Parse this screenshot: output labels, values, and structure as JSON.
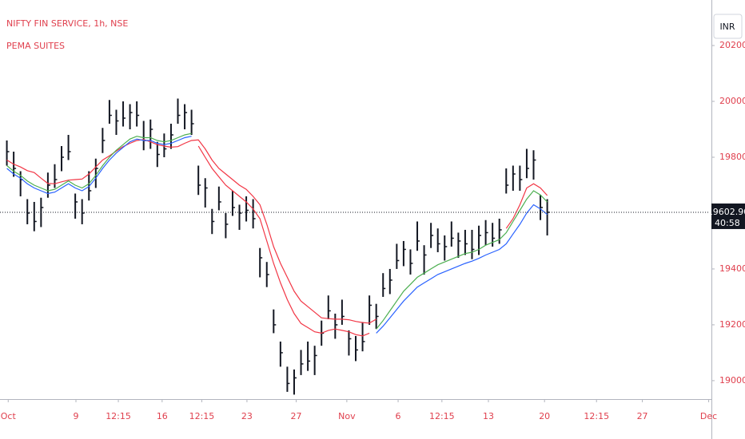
{
  "chart_data": {
    "type": "ohlc",
    "title": "NIFTY FIN SERVICE, 1h, NSE",
    "subtitle": "PEMA SUITES",
    "currency": "INR",
    "color": "#131722",
    "high": [
      19860,
      19820,
      19750,
      19650,
      19640,
      19655,
      19745,
      19775,
      19840,
      19880,
      19670,
      19650,
      19750,
      19795,
      19905,
      20005,
      19970,
      20000,
      19990,
      20000,
      19930,
      19935,
      19855,
      19885,
      19920,
      20010,
      19990,
      19970,
      19770,
      19725,
      19615,
      19695,
      19600,
      19680,
      19630,
      19660,
      19650,
      19475,
      19425,
      19255,
      19140,
      19050,
      19040,
      19110,
      19140,
      19125,
      19215,
      19305,
      19240,
      19290,
      19180,
      19160,
      19210,
      19305,
      19275,
      19385,
      19400,
      19490,
      19500,
      19470,
      19570,
      19485,
      19565,
      19545,
      19520,
      19570,
      19530,
      19540,
      19540,
      19555,
      19575,
      19565,
      19580,
      19760,
      19770,
      19770,
      19830,
      19825,
      19665,
      19650
    ],
    "low": [
      19770,
      19730,
      19660,
      19560,
      19535,
      19550,
      19655,
      19690,
      19750,
      19790,
      19580,
      19560,
      19645,
      19690,
      19815,
      19920,
      19880,
      19910,
      19900,
      19910,
      19825,
      19830,
      19765,
      19800,
      19830,
      19920,
      19900,
      19880,
      19665,
      19620,
      19525,
      19610,
      19510,
      19590,
      19540,
      19570,
      19545,
      19370,
      19335,
      19170,
      19050,
      18960,
      18950,
      19020,
      19035,
      19020,
      19125,
      19220,
      19150,
      19200,
      19090,
      19070,
      19105,
      19200,
      19185,
      19300,
      19310,
      19400,
      19410,
      19380,
      19465,
      19380,
      19475,
      19460,
      19430,
      19480,
      19440,
      19450,
      19435,
      19450,
      19485,
      19480,
      19490,
      19670,
      19680,
      19680,
      19725,
      19720,
      19575,
      19520
    ],
    "close": [
      19820,
      19760,
      19720,
      19600,
      19570,
      19620,
      19700,
      19720,
      19800,
      19820,
      19640,
      19600,
      19680,
      19760,
      19860,
      19950,
      19930,
      19940,
      19960,
      19950,
      19860,
      19900,
      19810,
      19830,
      19880,
      19950,
      19960,
      19920,
      19700,
      19690,
      19570,
      19640,
      19560,
      19620,
      19600,
      19610,
      19580,
      19440,
      19380,
      19200,
      19100,
      18990,
      19010,
      19060,
      19070,
      19090,
      19170,
      19250,
      19200,
      19230,
      19150,
      19110,
      19140,
      19270,
      19230,
      19330,
      19360,
      19430,
      19470,
      19420,
      19500,
      19450,
      19520,
      19490,
      19480,
      19510,
      19500,
      19490,
      19470,
      19520,
      19530,
      19510,
      19540,
      19700,
      19740,
      19720,
      19760,
      19790,
      19620,
      19602.9
    ],
    "series": [
      {
        "color": "#f23645",
        "values": [
          19790,
          19775,
          19765,
          19752,
          19745,
          19725,
          19706,
          19705,
          19712,
          19718,
          19720,
          19722,
          19740,
          19765,
          19790,
          19805,
          19822,
          19838,
          19850,
          19860,
          19863,
          19855,
          19845,
          19840,
          19836,
          19838,
          19850,
          19860,
          19862,
          19830,
          19790,
          19760,
          19740,
          19720,
          19700,
          19685,
          19660,
          19630,
          19560,
          19480,
          19420,
          19370,
          19320,
          19285,
          19265,
          19245,
          19225,
          19222,
          19220,
          19220,
          19218,
          19212,
          19208,
          19206,
          19220,
          null,
          null,
          null,
          null,
          null,
          null,
          null,
          null,
          null,
          null,
          null,
          null,
          null,
          null,
          null,
          null,
          null,
          null,
          19545,
          19580,
          19630,
          19690,
          19705,
          19690,
          19663
        ]
      },
      {
        "color": "#f23645",
        "values": [
          null,
          null,
          null,
          null,
          null,
          null,
          null,
          null,
          null,
          null,
          null,
          null,
          null,
          null,
          null,
          null,
          null,
          null,
          null,
          null,
          null,
          null,
          null,
          null,
          null,
          null,
          null,
          null,
          19840,
          19800,
          19760,
          19730,
          19700,
          19680,
          19660,
          19640,
          19615,
          19580,
          19500,
          19420,
          19350,
          19290,
          19240,
          19205,
          19190,
          19175,
          19170,
          19180,
          19185,
          19180,
          19175,
          19165,
          19160,
          19170,
          null,
          null,
          null,
          null,
          null,
          null,
          null,
          null,
          null,
          null,
          null,
          null,
          null,
          null,
          null,
          null,
          null,
          null,
          null,
          null,
          null,
          null,
          null,
          null,
          null,
          null
        ]
      },
      {
        "color": "#4caf50",
        "values": [
          19770,
          19750,
          19735,
          19715,
          19700,
          19690,
          19680,
          19685,
          19700,
          19715,
          19700,
          19690,
          19705,
          19735,
          19770,
          19800,
          19825,
          19845,
          19865,
          19875,
          19870,
          19870,
          19860,
          19855,
          19860,
          19870,
          19880,
          19885,
          null,
          null,
          null,
          null,
          null,
          null,
          null,
          null,
          null,
          null,
          null,
          null,
          null,
          null,
          null,
          null,
          null,
          null,
          null,
          null,
          null,
          null,
          null,
          null,
          null,
          null,
          19185,
          19215,
          19250,
          19285,
          19320,
          19345,
          19370,
          19385,
          19400,
          19415,
          19425,
          19435,
          19445,
          19455,
          19460,
          19470,
          19485,
          19495,
          19505,
          19530,
          19570,
          19610,
          19650,
          19680,
          19665,
          19640
        ]
      },
      {
        "color": "#2962ff",
        "values": [
          19760,
          19740,
          19725,
          19705,
          19690,
          19680,
          19670,
          19675,
          19690,
          19705,
          19690,
          19680,
          19695,
          19725,
          19760,
          19790,
          19815,
          19835,
          19855,
          19865,
          19860,
          19860,
          19850,
          19845,
          19850,
          19860,
          19870,
          19875,
          null,
          null,
          null,
          null,
          null,
          null,
          null,
          null,
          null,
          null,
          null,
          null,
          null,
          null,
          null,
          null,
          null,
          null,
          null,
          null,
          null,
          null,
          null,
          null,
          null,
          null,
          19170,
          19195,
          19225,
          19255,
          19285,
          19310,
          19335,
          19350,
          19365,
          19380,
          19390,
          19400,
          19410,
          19420,
          19428,
          19438,
          19450,
          19460,
          19470,
          19490,
          19525,
          19560,
          19600,
          19630,
          19615,
          19595
        ]
      }
    ],
    "last_price": {
      "value": 19602.9,
      "label": "19602.90"
    },
    "countdown": "40:58",
    "xlim": [
      -1,
      103
    ],
    "xticks": [
      {
        "value": 0.2,
        "label": "Oct"
      },
      {
        "value": 10.1,
        "label": "9"
      },
      {
        "value": 16.3,
        "label": "12:15"
      },
      {
        "value": 22.7,
        "label": "16"
      },
      {
        "value": 28.5,
        "label": "12:15"
      },
      {
        "value": 35.1,
        "label": "23"
      },
      {
        "value": 42.3,
        "label": "27"
      },
      {
        "value": 49.7,
        "label": "Nov"
      },
      {
        "value": 57.2,
        "label": "6"
      },
      {
        "value": 63.6,
        "label": "12:15"
      },
      {
        "value": 70.4,
        "label": "13"
      },
      {
        "value": 78.6,
        "label": "20"
      },
      {
        "value": 86.2,
        "label": "12:15"
      },
      {
        "value": 92.9,
        "label": "27"
      },
      {
        "value": 102.6,
        "label": "Dec"
      }
    ],
    "ylim": [
      18934,
      20363
    ],
    "yticks": [
      {
        "value": 19000,
        "label": "19000.00"
      },
      {
        "value": 19200,
        "label": "19200.00"
      },
      {
        "value": 19400,
        "label": "19400.00"
      },
      {
        "value": 19800,
        "label": "19800.00"
      },
      {
        "value": 20000,
        "label": "20000.00"
      },
      {
        "value": 20200,
        "label": "20200.00"
      }
    ]
  }
}
